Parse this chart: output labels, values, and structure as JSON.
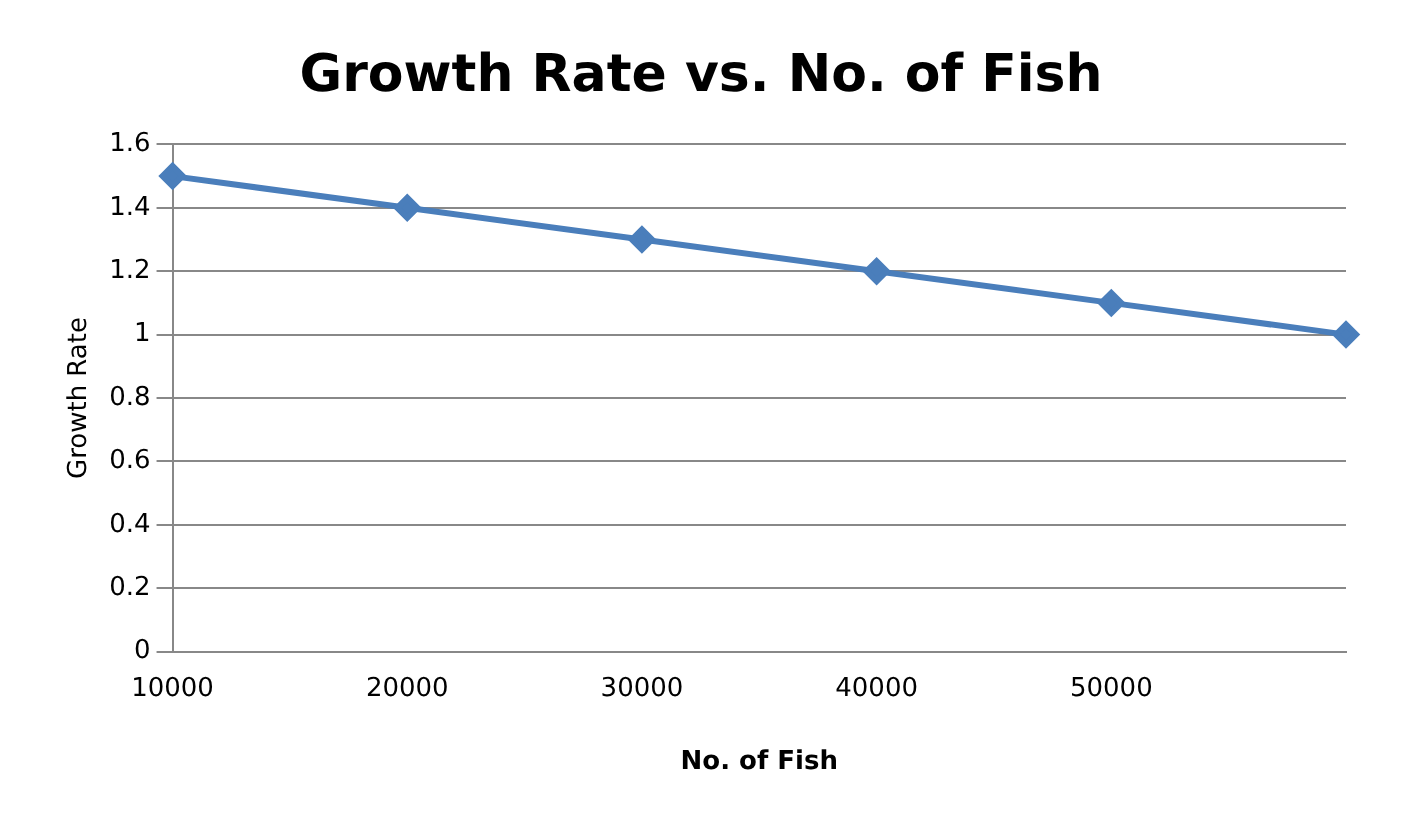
{
  "chart_data": {
    "type": "line",
    "title": "Growth Rate vs. No. of Fish",
    "xlabel": "No. of Fish",
    "ylabel": "Growth Rate",
    "categories": [
      "10000",
      "20000",
      "30000",
      "40000",
      "50000",
      null
    ],
    "series": [
      {
        "color": "#4a7ebb",
        "values": [
          1.5,
          1.4,
          1.3,
          1.2,
          1.1,
          1.0
        ]
      }
    ],
    "ylim": [
      0,
      1.6
    ],
    "yticks": [
      0,
      0.2,
      0.4,
      0.6,
      0.8,
      1,
      1.2,
      1.4,
      1.6
    ],
    "grid": "y",
    "legend": false,
    "marker": "diamond",
    "line_style": "solid"
  }
}
